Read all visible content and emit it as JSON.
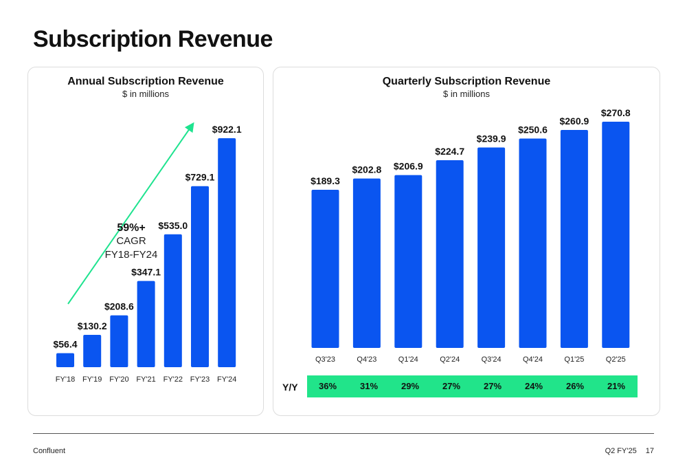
{
  "page": {
    "title": "Subscription Revenue",
    "footer_left": "Confluent",
    "footer_period": "Q2 FY'25",
    "footer_page": "17"
  },
  "annual": {
    "title": "Annual Subscription Revenue",
    "subtitle": "$ in millions",
    "cagr_value": "59%+",
    "cagr_label": "CAGR",
    "cagr_range": "FY18-FY24",
    "arrow_color": "#1ee38f"
  },
  "quarterly": {
    "title": "Quarterly Subscription Revenue",
    "subtitle": "$ in millions",
    "yy_label": "Y/Y",
    "yy_values": [
      "36%",
      "31%",
      "29%",
      "27%",
      "27%",
      "24%",
      "26%",
      "21%"
    ],
    "yy_color": "#21e48a"
  },
  "chart_data": [
    {
      "type": "bar",
      "title": "Annual Subscription Revenue",
      "subtitle": "$ in millions",
      "categories": [
        "FY'18",
        "FY'19",
        "FY'20",
        "FY'21",
        "FY'22",
        "FY'23",
        "FY'24"
      ],
      "values": [
        56.4,
        130.2,
        208.6,
        347.1,
        535.0,
        729.1,
        922.1
      ],
      "data_labels": [
        "$56.4",
        "$130.2",
        "$208.6",
        "$347.1",
        "$535.0",
        "$729.1",
        "$922.1"
      ],
      "ylim": [
        0,
        922.1
      ],
      "grid": false,
      "bar_color": "#0a55f0"
    },
    {
      "type": "bar",
      "title": "Quarterly Subscription Revenue",
      "subtitle": "$ in millions",
      "categories": [
        "Q3'23",
        "Q4'23",
        "Q1'24",
        "Q2'24",
        "Q3'24",
        "Q4'24",
        "Q1'25",
        "Q2'25"
      ],
      "values": [
        189.3,
        202.8,
        206.9,
        224.7,
        239.9,
        250.6,
        260.9,
        270.8
      ],
      "data_labels": [
        "$189.3",
        "$202.8",
        "$206.9",
        "$224.7",
        "$239.9",
        "$250.6",
        "$260.9",
        "$270.8"
      ],
      "ylim": [
        0,
        270.8
      ],
      "grid": false,
      "bar_color": "#0a55f0"
    }
  ]
}
